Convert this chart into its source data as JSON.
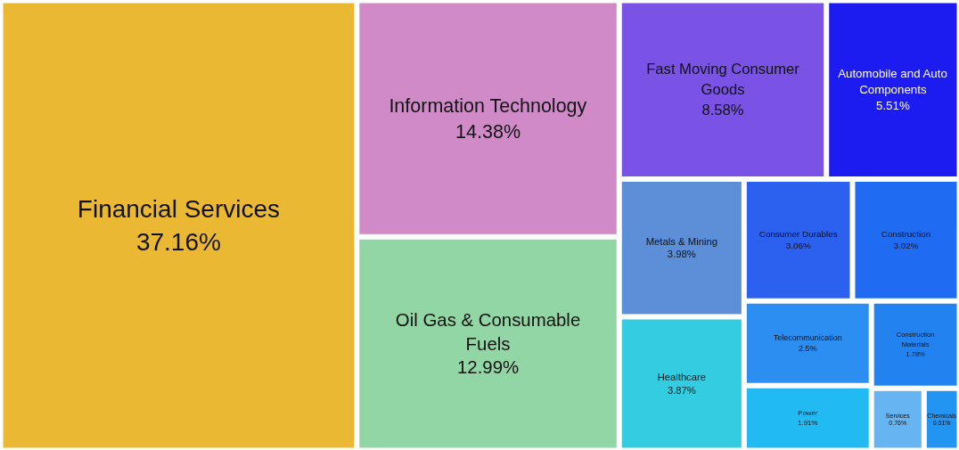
{
  "chart_data": {
    "type": "other",
    "categories": [
      "Financial Services",
      "Information Technology",
      "Oil Gas & Consumable Fuels",
      "Fast Moving Consumer Goods",
      "Automobile and Auto Components",
      "Metals & Mining",
      "Healthcare",
      "Consumer Durables",
      "Construction",
      "Telecommunication",
      "Power",
      "Construction Materials",
      "Services",
      "Chemicals"
    ],
    "values": [
      37.16,
      14.38,
      12.99,
      8.58,
      5.51,
      3.98,
      3.87,
      3.06,
      3.02,
      2.5,
      1.91,
      1.78,
      0.76,
      0.51
    ],
    "value_labels": [
      "37.16%",
      "14.38%",
      "12.99%",
      "8.58%",
      "5.51%",
      "3.98%",
      "3.87%",
      "3.06%",
      "3.02%",
      "2.5%",
      "1.91%",
      "1.78%",
      "0.76%",
      "0.51%"
    ],
    "colors": [
      "#eab832",
      "#d08ac8",
      "#93d6a6",
      "#7a52e6",
      "#1c1cf0",
      "#5c8fd8",
      "#34cce0",
      "#2c60ee",
      "#1f6cf2",
      "#2c8ef0",
      "#22baf2",
      "#2282f0",
      "#66b4f2",
      "#2294f2"
    ]
  }
}
